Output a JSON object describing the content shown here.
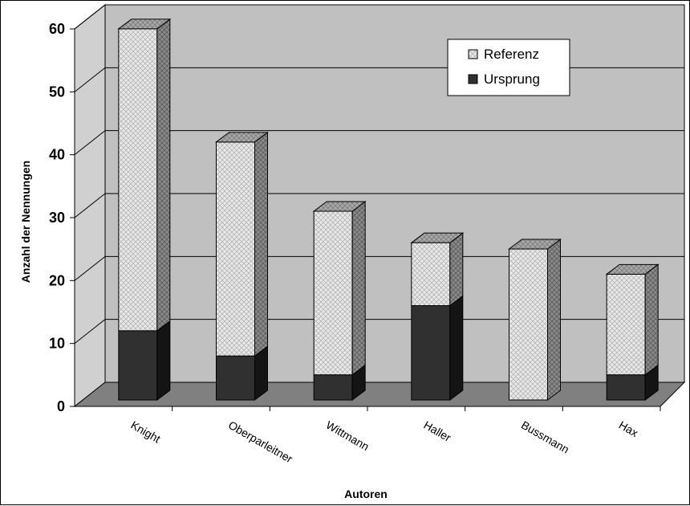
{
  "chart_data": {
    "type": "bar",
    "stacked": true,
    "three_d": true,
    "categories": [
      "Knight",
      "Oberparleitner",
      "Wittmann",
      "Haller",
      "Bussmann",
      "Hax"
    ],
    "series": [
      {
        "name": "Ursprung",
        "values": [
          11,
          7,
          4,
          15,
          0,
          4
        ],
        "color": "#333333"
      },
      {
        "name": "Referenz",
        "values": [
          48,
          34,
          26,
          10,
          24,
          16
        ],
        "color": "#e6e6e6"
      }
    ],
    "xlabel": "Autoren",
    "ylabel": "Anzahl der Nennungen",
    "ylim": [
      0,
      60
    ],
    "yticks": [
      0,
      10,
      20,
      30,
      40,
      50,
      60
    ],
    "grid": true,
    "legend_position": "top-right",
    "legend_order": [
      "Referenz",
      "Ursprung"
    ],
    "colors": {
      "wall": "#c0c0c0",
      "floor": "#808080",
      "side_wall": "#d0d0d0"
    }
  }
}
